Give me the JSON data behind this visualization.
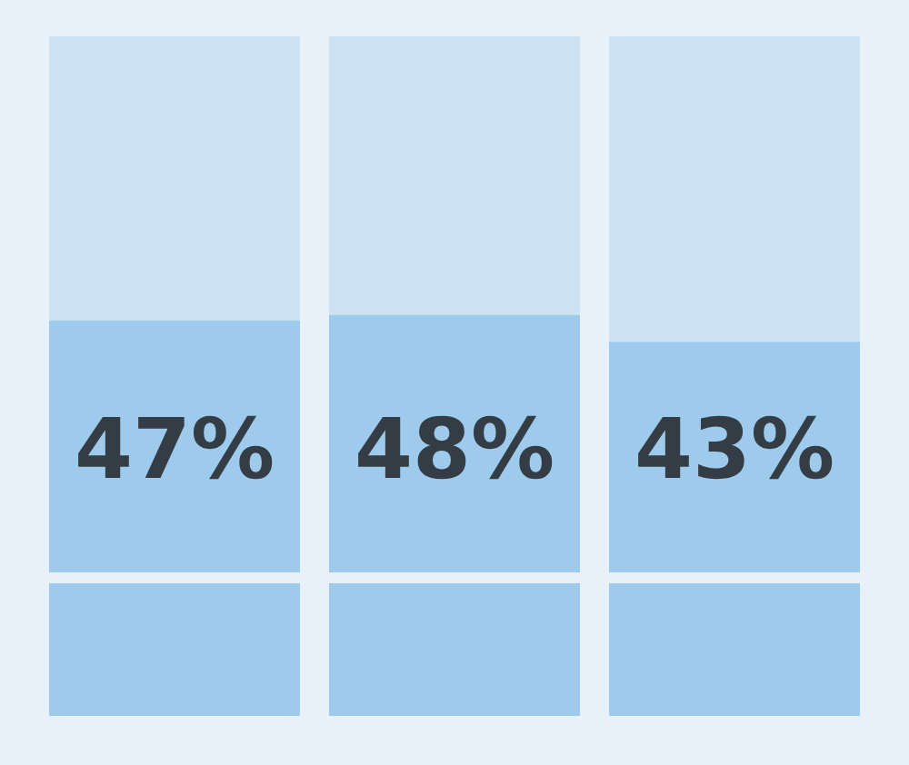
{
  "chart_data": {
    "type": "bar",
    "categories": [
      null,
      null,
      null
    ],
    "values": [
      47,
      48,
      43
    ],
    "value_labels": [
      "47%",
      "48%",
      "43%"
    ],
    "color": "#9ecbeb",
    "ylim": [
      0,
      100
    ],
    "tick_labels": false
  }
}
